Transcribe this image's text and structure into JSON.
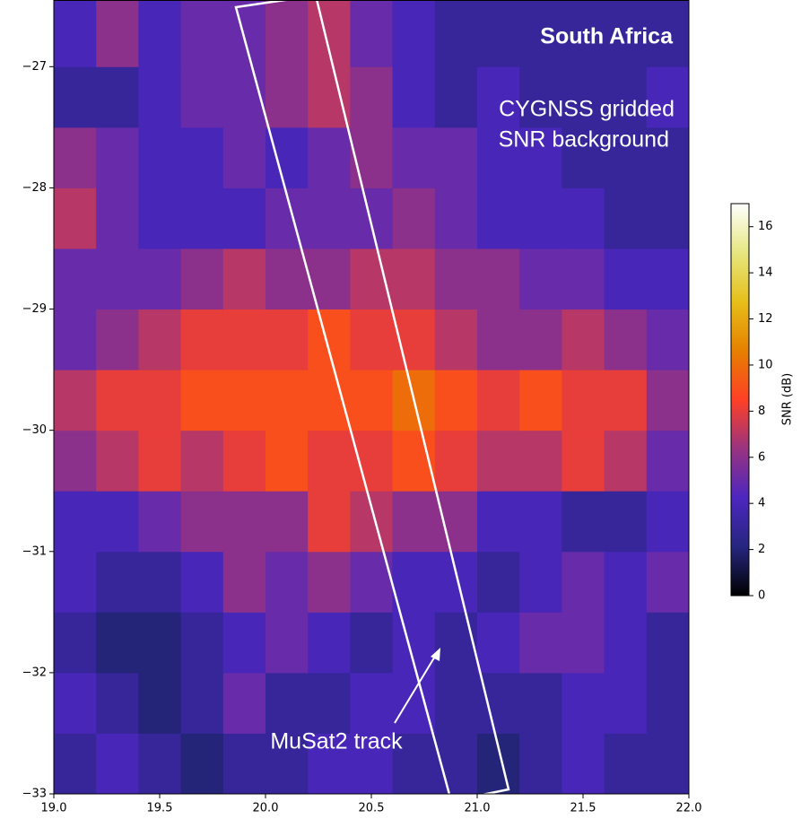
{
  "chart_data": {
    "type": "heatmap",
    "colormap": "CMRmap",
    "annotations": [
      "South Africa",
      "CYGNSS gridded",
      "SNR background",
      "MuSat2 track"
    ],
    "colorbar_label": "SNR (dB)",
    "clim": [
      0,
      17
    ],
    "cticks": [
      0,
      2,
      4,
      6,
      8,
      10,
      12,
      14,
      16
    ],
    "xlim": [
      19,
      22
    ],
    "xticks": [
      {
        "value": 19,
        "label": "19.0"
      },
      {
        "value": 19.5,
        "label": "19.5"
      },
      {
        "value": 20,
        "label": "20.0"
      },
      {
        "value": 20.5,
        "label": "20.5"
      },
      {
        "value": 21,
        "label": "21.0"
      },
      {
        "value": 21.5,
        "label": "21.5"
      },
      {
        "value": 22,
        "label": "22.0"
      }
    ],
    "ylim": [
      -33,
      -26.45
    ],
    "yticks": [
      {
        "value": -33,
        "label": "−33"
      },
      {
        "value": -32,
        "label": "−32"
      },
      {
        "value": -31,
        "label": "−31"
      },
      {
        "value": -30,
        "label": "−30"
      },
      {
        "value": -29,
        "label": "−29"
      },
      {
        "value": -28,
        "label": "−28"
      },
      {
        "value": -27,
        "label": "−27"
      }
    ],
    "xbins": [
      19,
      19.2,
      19.4,
      19.6,
      19.8,
      20,
      20.2,
      20.4,
      20.6,
      20.8,
      21,
      21.2,
      21.4,
      21.6,
      21.8,
      22
    ],
    "ybins": [
      -33,
      -32.5,
      -32,
      -31.5,
      -31,
      -30.5,
      -30,
      -29.5,
      -29,
      -28.5,
      -28,
      -27.5,
      -27,
      -26.45
    ],
    "z": [
      [
        3,
        4,
        3,
        2,
        3,
        3,
        4,
        4,
        3,
        3,
        2,
        3,
        4,
        3,
        3
      ],
      [
        4,
        3,
        2,
        3,
        5,
        3,
        3,
        4,
        4,
        3,
        3,
        3,
        4,
        4,
        3
      ],
      [
        3,
        2,
        2,
        3,
        4,
        5,
        4,
        3,
        4,
        3,
        4,
        5,
        5,
        4,
        3
      ],
      [
        4,
        3,
        3,
        4,
        6,
        5,
        6,
        5,
        4,
        4,
        3,
        4,
        5,
        4,
        5
      ],
      [
        4,
        4,
        5,
        6,
        6,
        6,
        8,
        7,
        6,
        6,
        4,
        4,
        3,
        3,
        4
      ],
      [
        6,
        7,
        8,
        7,
        8,
        9,
        8,
        8,
        9,
        8,
        7,
        7,
        8,
        7,
        5
      ],
      [
        7,
        8,
        8,
        9,
        9,
        9,
        9,
        9,
        10,
        9,
        8,
        9,
        8,
        8,
        6
      ],
      [
        5,
        6,
        7,
        8,
        8,
        8,
        9,
        8,
        8,
        7,
        6,
        6,
        7,
        6,
        5
      ],
      [
        5,
        5,
        5,
        6,
        7,
        6,
        6,
        7,
        7,
        6,
        6,
        5,
        5,
        4,
        4
      ],
      [
        7,
        5,
        4,
        4,
        4,
        5,
        5,
        5,
        6,
        5,
        4,
        4,
        4,
        3,
        3
      ],
      [
        6,
        5,
        4,
        4,
        5,
        4,
        5,
        6,
        5,
        5,
        4,
        4,
        3,
        3,
        3
      ],
      [
        3,
        3,
        4,
        5,
        5,
        6,
        7,
        6,
        4,
        3,
        4,
        3,
        3,
        3,
        4
      ],
      [
        4,
        6,
        4,
        5,
        5,
        6,
        7,
        5,
        4,
        3,
        3,
        3,
        3,
        3,
        3
      ]
    ]
  }
}
